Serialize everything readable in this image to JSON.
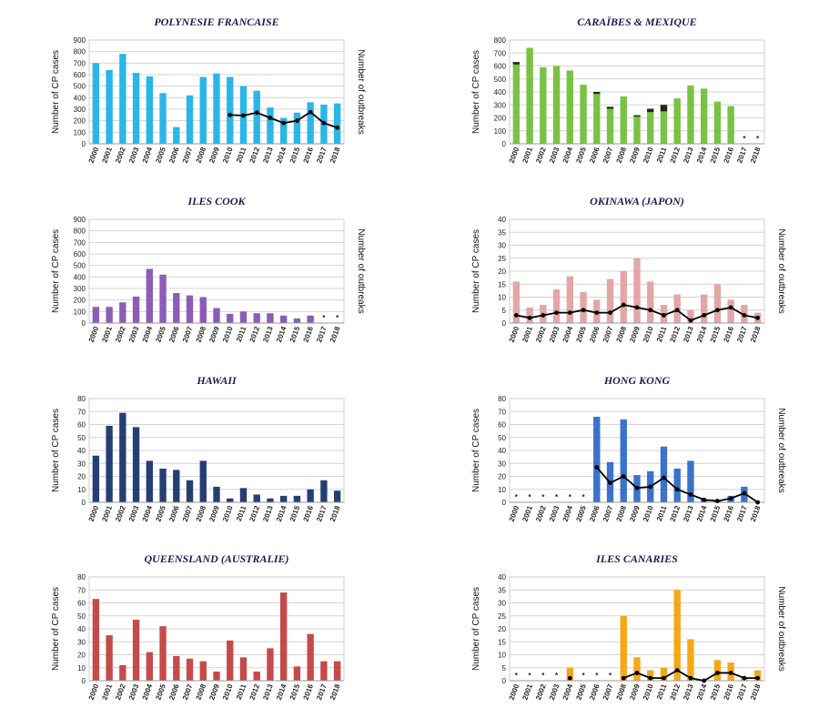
{
  "chart_data": [
    {
      "type": "bar",
      "title": "POLYNESIE FRANCAISE",
      "ylabel": "Number of CP cases",
      "y2label": "Number of outbreaks",
      "categories": [
        "2000",
        "2001",
        "2002",
        "2003",
        "2004",
        "2005",
        "2006",
        "2007",
        "2008",
        "2009",
        "2010",
        "2011",
        "2012",
        "2013",
        "2014",
        "2015",
        "2016",
        "2017",
        "2018"
      ],
      "ylim": [
        0,
        900
      ],
      "yticks": [
        0,
        100,
        200,
        300,
        400,
        500,
        600,
        700,
        800,
        900
      ],
      "color": "#29b6e8",
      "values": [
        700,
        640,
        780,
        615,
        585,
        440,
        145,
        420,
        580,
        610,
        580,
        500,
        460,
        315,
        225,
        270,
        360,
        340,
        350
      ],
      "line": [
        null,
        null,
        null,
        null,
        null,
        null,
        null,
        null,
        null,
        null,
        250,
        245,
        270,
        225,
        180,
        200,
        275,
        180,
        140
      ],
      "markers": []
    },
    {
      "type": "bar",
      "title": "CARAÏBES & MEXIQUE",
      "ylabel": "Number of CP cases",
      "y2label": "",
      "categories": [
        "2000",
        "2001",
        "2002",
        "2003",
        "2004",
        "2005",
        "2006",
        "2007",
        "2008",
        "2009",
        "2010",
        "2011",
        "2012",
        "2013",
        "2014",
        "2015",
        "2016",
        "2017",
        "2018"
      ],
      "ylim": [
        0,
        800
      ],
      "yticks": [
        0,
        100,
        200,
        300,
        400,
        500,
        600,
        700,
        800
      ],
      "color": "#79c243",
      "values": [
        630,
        740,
        590,
        600,
        565,
        455,
        400,
        285,
        365,
        220,
        270,
        300,
        350,
        450,
        425,
        325,
        290,
        null,
        null
      ],
      "dark_caps": [
        612,
        null,
        null,
        null,
        null,
        null,
        385,
        270,
        null,
        210,
        245,
        250,
        null,
        null,
        null,
        null,
        null,
        null,
        null
      ],
      "line": [],
      "markers": [
        {
          "x": "2017",
          "label": "*"
        },
        {
          "x": "2018",
          "label": "*"
        }
      ]
    },
    {
      "type": "bar",
      "title": "ILES COOK",
      "ylabel": "Number of CP cases",
      "y2label": "Number of outbreaks",
      "categories": [
        "2000",
        "2001",
        "2002",
        "2003",
        "2004",
        "2005",
        "2006",
        "2007",
        "2008",
        "2009",
        "2010",
        "2011",
        "2012",
        "2013",
        "2014",
        "2015",
        "2016",
        "2017",
        "2018"
      ],
      "ylim": [
        0,
        900
      ],
      "yticks": [
        0,
        100,
        200,
        300,
        400,
        500,
        600,
        700,
        800,
        900
      ],
      "color": "#8d5cb7",
      "values": [
        140,
        140,
        180,
        230,
        470,
        420,
        260,
        240,
        225,
        130,
        80,
        100,
        85,
        85,
        65,
        40,
        65,
        null,
        null
      ],
      "line": [],
      "markers": [
        {
          "x": "2017",
          "label": "*"
        },
        {
          "x": "2018",
          "label": "*"
        }
      ]
    },
    {
      "type": "bar",
      "title": "OKINAWA (JAPON)",
      "ylabel": "Number of CP cases",
      "y2label": "Number of outbreaks",
      "categories": [
        "2000",
        "2001",
        "2002",
        "2003",
        "2004",
        "2005",
        "2006",
        "2007",
        "2008",
        "2009",
        "2010",
        "2011",
        "2012",
        "2013",
        "2014",
        "2015",
        "2016",
        "2017",
        "2018"
      ],
      "ylim": [
        0,
        40
      ],
      "yticks": [
        0,
        5,
        10,
        15,
        20,
        25,
        30,
        35,
        40
      ],
      "color": "#e3a6a6",
      "values": [
        16,
        6,
        7,
        13,
        18,
        12,
        9,
        17,
        20,
        25,
        16,
        7,
        11,
        5,
        11,
        15,
        9,
        7,
        4
      ],
      "line": [
        3,
        2,
        3,
        4,
        4,
        5,
        4,
        4,
        7,
        6,
        5,
        3,
        5,
        1,
        3,
        5,
        6,
        3,
        2
      ],
      "markers": []
    },
    {
      "type": "bar",
      "title": "HAWAII",
      "ylabel": "Number of CP cases",
      "y2label": "",
      "categories": [
        "2000",
        "2001",
        "2002",
        "2003",
        "2004",
        "2005",
        "2006",
        "2007",
        "2008",
        "2009",
        "2010",
        "2011",
        "2012",
        "2013",
        "2014",
        "2015",
        "2016",
        "2017",
        "2018"
      ],
      "ylim": [
        0,
        80
      ],
      "yticks": [
        0,
        10,
        20,
        30,
        40,
        50,
        60,
        70,
        80
      ],
      "color": "#243f73",
      "values": [
        36,
        59,
        69,
        58,
        32,
        26,
        25,
        17,
        32,
        12,
        3,
        11,
        6,
        3,
        5,
        5,
        10,
        17,
        9
      ],
      "line": [],
      "markers": []
    },
    {
      "type": "bar",
      "title": "HONG KONG",
      "ylabel": "Number of CP cases",
      "y2label": "Number of outbreaks",
      "categories": [
        "2000",
        "2001",
        "2002",
        "2003",
        "2004",
        "2005",
        "2006",
        "2007",
        "2008",
        "2009",
        "2010",
        "2011",
        "2012",
        "2013",
        "2014",
        "2015",
        "2016",
        "2017",
        "2018"
      ],
      "ylim": [
        0,
        80
      ],
      "yticks": [
        0,
        10,
        20,
        30,
        40,
        50,
        60,
        70,
        80
      ],
      "color": "#3a72cc",
      "values": [
        null,
        null,
        null,
        null,
        null,
        null,
        66,
        31,
        64,
        21,
        24,
        43,
        26,
        32,
        2,
        1,
        5,
        12,
        0
      ],
      "line": [
        null,
        null,
        null,
        null,
        null,
        null,
        27,
        15,
        20,
        11,
        12,
        19,
        10,
        6,
        2,
        1,
        3,
        7,
        0
      ],
      "markers": [
        {
          "x": "2000",
          "label": "*"
        },
        {
          "x": "2001",
          "label": "*"
        },
        {
          "x": "2002",
          "label": "*"
        },
        {
          "x": "2003",
          "label": "*"
        },
        {
          "x": "2004",
          "label": "*"
        },
        {
          "x": "2005",
          "label": "*"
        }
      ]
    },
    {
      "type": "bar",
      "title": "QUEENSLAND (AUSTRALIE)",
      "ylabel": "Number of CP cases",
      "y2label": "",
      "categories": [
        "2000",
        "2001",
        "2002",
        "2003",
        "2004",
        "2005",
        "2006",
        "2007",
        "2008",
        "2009",
        "2010",
        "2011",
        "2012",
        "2013",
        "2014",
        "2015",
        "2016",
        "2017",
        "2018"
      ],
      "ylim": [
        0,
        80
      ],
      "yticks": [
        0,
        10,
        20,
        30,
        40,
        50,
        60,
        70,
        80
      ],
      "color": "#c54b4b",
      "values": [
        63,
        35,
        12,
        47,
        22,
        42,
        19,
        17,
        15,
        7,
        31,
        18,
        7,
        25,
        68,
        11,
        36,
        15,
        15
      ],
      "line": [],
      "markers": []
    },
    {
      "type": "bar",
      "title": "ILES CANARIES",
      "ylabel": "Number of CP cases",
      "y2label": "Number of outbreaks",
      "categories": [
        "2000",
        "2001",
        "2002",
        "2003",
        "2004",
        "2005",
        "2006",
        "2007",
        "2008",
        "2009",
        "2010",
        "2011",
        "2012",
        "2013",
        "2014",
        "2015",
        "2016",
        "2017",
        "2018"
      ],
      "ylim": [
        0,
        40
      ],
      "yticks": [
        0,
        5,
        10,
        15,
        20,
        25,
        30,
        35,
        40
      ],
      "color": "#f5a817",
      "values": [
        null,
        null,
        null,
        null,
        5,
        null,
        null,
        null,
        25,
        9,
        4,
        5,
        35,
        16,
        0,
        8,
        7,
        1,
        4
      ],
      "line": [
        null,
        null,
        null,
        null,
        1,
        null,
        null,
        null,
        1,
        3,
        1,
        1,
        4,
        1,
        0,
        3,
        3,
        1,
        1
      ],
      "markers": [
        {
          "x": "2000",
          "label": "*"
        },
        {
          "x": "2001",
          "label": "*"
        },
        {
          "x": "2002",
          "label": "*"
        },
        {
          "x": "2003",
          "label": "*"
        },
        {
          "x": "2005",
          "label": "*"
        },
        {
          "x": "2006",
          "label": "*"
        },
        {
          "x": "2007",
          "label": "*"
        }
      ]
    }
  ]
}
